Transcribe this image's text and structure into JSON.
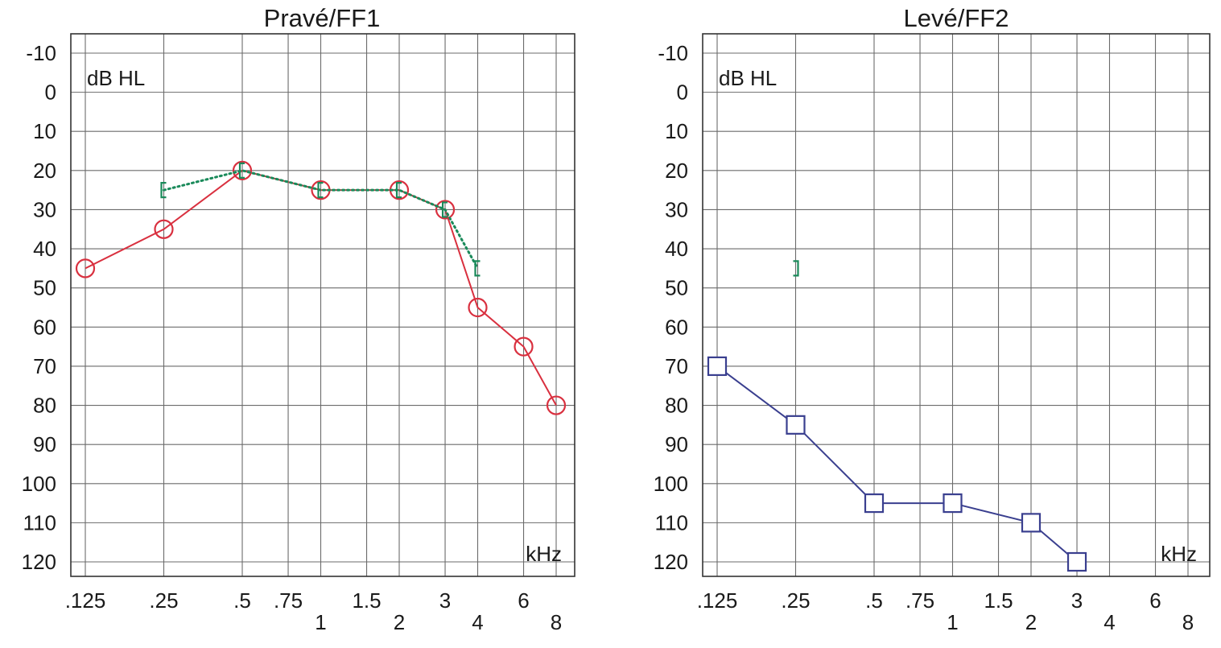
{
  "chart_data": [
    {
      "type": "line",
      "title": "Pravé/FF1",
      "ylabel": "dB HL",
      "xlabel": "kHz",
      "ylim": [
        -10,
        120
      ],
      "y_ticks": [
        "-10",
        "0",
        "10",
        "20",
        "30",
        "40",
        "50",
        "60",
        "70",
        "80",
        "90",
        "100",
        "110",
        "120"
      ],
      "x_ticks_upper": [
        ".125",
        ".25",
        ".5",
        ".75",
        "1.5",
        "3",
        "6"
      ],
      "x_ticks_lower": [
        "1",
        "2",
        "4",
        "8"
      ],
      "grid": true,
      "series": [
        {
          "marker": "circle",
          "line": "solid",
          "color": "#d9303f",
          "x": [
            0.125,
            0.25,
            0.5,
            1,
            2,
            3,
            4,
            6,
            8
          ],
          "y": [
            45,
            35,
            20,
            25,
            25,
            30,
            55,
            65,
            80
          ]
        },
        {
          "marker": "bracket-left",
          "line": "dotted",
          "color": "#1a8a5a",
          "x": [
            0.25,
            0.5,
            1,
            2,
            3,
            4
          ],
          "y": [
            25,
            20,
            25,
            25,
            30,
            45
          ]
        }
      ]
    },
    {
      "type": "line",
      "title": "Levé/FF2",
      "ylabel": "dB HL",
      "xlabel": "kHz",
      "ylim": [
        -10,
        120
      ],
      "y_ticks": [
        "-10",
        "0",
        "10",
        "20",
        "30",
        "40",
        "50",
        "60",
        "70",
        "80",
        "90",
        "100",
        "110",
        "120"
      ],
      "x_ticks_upper": [
        ".125",
        ".25",
        ".5",
        ".75",
        "1.5",
        "3",
        "6"
      ],
      "x_ticks_lower": [
        "1",
        "2",
        "4",
        "8"
      ],
      "grid": true,
      "series": [
        {
          "marker": "square",
          "line": "solid",
          "color": "#3a3f8f",
          "x": [
            0.125,
            0.25,
            0.5,
            1,
            2,
            3
          ],
          "y": [
            70,
            85,
            105,
            105,
            110,
            120
          ]
        },
        {
          "marker": "bracket-right",
          "line": "none",
          "color": "#1a8a5a",
          "x": [
            0.25
          ],
          "y": [
            45
          ]
        }
      ]
    }
  ]
}
